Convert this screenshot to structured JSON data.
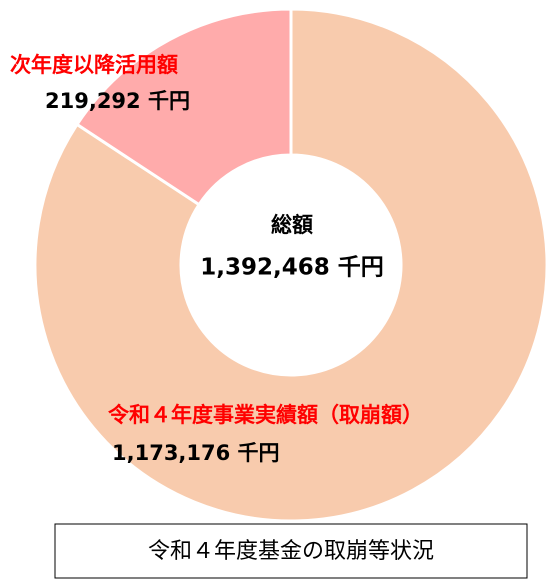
{
  "chart_data": {
    "type": "donut",
    "title": "令和４年度基金の取崩等状況",
    "categories": [
      "令和４年度事業実績額（取崩額）",
      "次年度以降活用額"
    ],
    "values": [
      1173176,
      219292
    ],
    "value_labels": [
      "1,173,176 千円",
      "219,292 千円"
    ],
    "colors": [
      "#f8cbad",
      "#ffabab"
    ],
    "annotations": [
      "総額",
      "1,392,468 千円"
    ]
  }
}
